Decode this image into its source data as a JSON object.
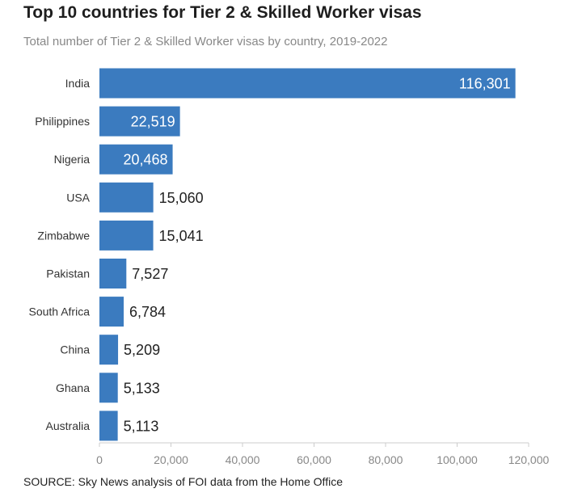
{
  "chart_data": {
    "type": "bar",
    "orientation": "horizontal",
    "title": "Top 10 countries for Tier 2 & Skilled Worker visas",
    "subtitle": "Total number of Tier 2 & Skilled Worker visas by country, 2019-2022",
    "categories": [
      "India",
      "Philippines",
      "Nigeria",
      "USA",
      "Zimbabwe",
      "Pakistan",
      "South Africa",
      "China",
      "Ghana",
      "Australia"
    ],
    "values": [
      116301,
      22519,
      20468,
      15060,
      15041,
      7527,
      6784,
      5209,
      5133,
      5113
    ],
    "value_labels": [
      "116,301",
      "22,519",
      "20,468",
      "15,060",
      "15,041",
      "7,527",
      "6,784",
      "5,209",
      "5,133",
      "5,113"
    ],
    "xlim": [
      0,
      120000
    ],
    "xticks": [
      0,
      20000,
      40000,
      60000,
      80000,
      100000,
      120000
    ],
    "xtick_labels": [
      "0",
      "20,000",
      "40,000",
      "60,000",
      "80,000",
      "100,000",
      "120,000"
    ],
    "grid": false,
    "source": "SOURCE: Sky News analysis of FOI data from the Home Office",
    "colors": {
      "bar": "#3b7bbf",
      "label_inside": "#ffffff",
      "label_outside": "#222222",
      "axis": "#cccccc"
    }
  }
}
